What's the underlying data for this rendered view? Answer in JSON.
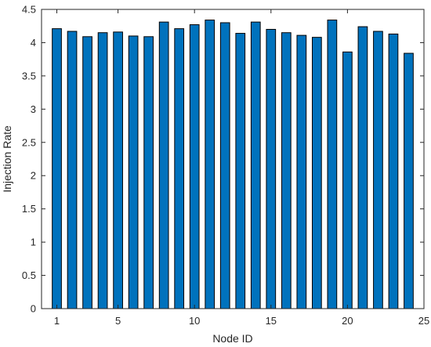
{
  "chart_data": {
    "type": "bar",
    "xlabel": "Node ID",
    "ylabel": "Injection Rate",
    "xlim": [
      0,
      25
    ],
    "ylim": [
      0,
      4.5
    ],
    "x_ticks": [
      1,
      5,
      10,
      15,
      20,
      25
    ],
    "y_ticks": [
      0,
      0.5,
      1,
      1.5,
      2,
      2.5,
      3,
      3.5,
      4,
      4.5
    ],
    "grid": false,
    "bar_color": "#0072BD",
    "x": [
      1,
      2,
      3,
      4,
      5,
      6,
      7,
      8,
      9,
      10,
      11,
      12,
      13,
      14,
      15,
      16,
      17,
      18,
      19,
      20,
      21,
      22,
      23,
      24
    ],
    "values": [
      4.21,
      4.17,
      4.09,
      4.15,
      4.16,
      4.1,
      4.09,
      4.31,
      4.21,
      4.27,
      4.34,
      4.3,
      4.14,
      4.31,
      4.2,
      4.15,
      4.11,
      4.08,
      4.34,
      3.86,
      4.24,
      4.17,
      4.13,
      3.84
    ]
  }
}
